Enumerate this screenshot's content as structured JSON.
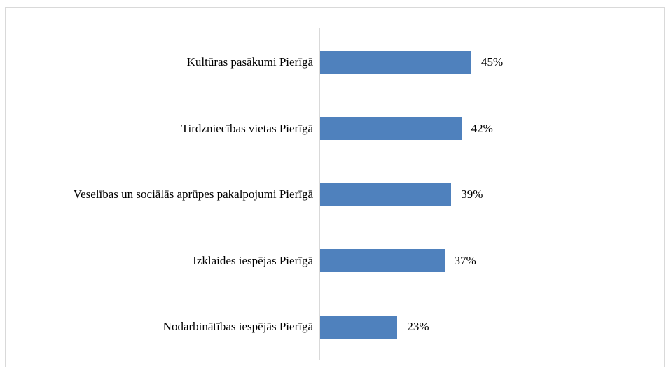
{
  "chart_data": {
    "type": "bar",
    "orientation": "horizontal",
    "categories": [
      "Kultūras pasākumi Pierīgā",
      "Tirdzniecības vietas Pierīgā",
      "Veselības un sociālās aprūpes pakalpojumi Pierīgā",
      "Izklaides iespējas Pierīgā",
      "Nodarbinātības iespējās Pierīgā"
    ],
    "values": [
      45,
      42,
      39,
      37,
      23
    ],
    "value_labels": [
      "45%",
      "42%",
      "39%",
      "37%",
      "23%"
    ],
    "color": "#4f81bd",
    "xlim": [
      0,
      100
    ]
  }
}
